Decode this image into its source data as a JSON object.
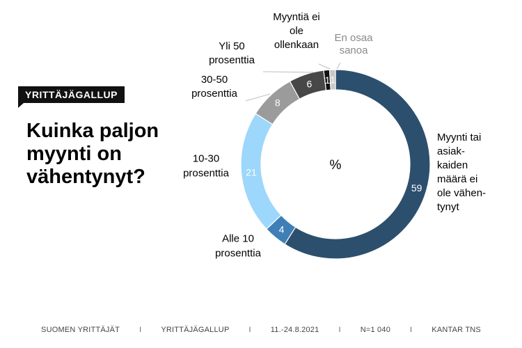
{
  "badge": "YRITTÄJÄGALLUP",
  "question_lines": [
    "Kuinka paljon",
    "myynti on",
    "vähentynyt?"
  ],
  "chart_data": {
    "type": "pie",
    "center_label": "%",
    "categories": [
      "Myynti tai asiakkaiden määrä ei ole vähentynyt",
      "Alle 10 prosenttia",
      "10-30 prosenttia",
      "30-50 prosenttia",
      "Yli 50 prosenttia",
      "Myyntiä ei ole ollenkaan",
      "En osaa sanoa"
    ],
    "category_label_lines": [
      [
        "Myynti tai",
        "asiak-",
        "kaiden",
        "määrä ei",
        "ole vähen-",
        "tynyt"
      ],
      [
        "Alle 10",
        "prosenttia"
      ],
      [
        "10-30",
        "prosenttia"
      ],
      [
        "30-50",
        "prosenttia"
      ],
      [
        "Yli 50",
        "prosenttia"
      ],
      [
        "Myyntiä ei",
        "ole",
        "ollenkaan"
      ],
      [
        "En osaa",
        "sanoa"
      ]
    ],
    "values": [
      59,
      4,
      21,
      8,
      6,
      1,
      1
    ],
    "value_labels": [
      "59",
      "4",
      "21",
      "8",
      "6",
      "1",
      "1"
    ],
    "colors": [
      "#2d4f6e",
      "#3f7fb6",
      "#9dd7fb",
      "#9b9b9b",
      "#474747",
      "#111111",
      "#c8c8c8"
    ]
  },
  "footer": [
    "SUOMEN YRITTÄJÄT",
    "YRITTÄJÄGALLUP",
    "11.-24.8.2021",
    "N=1 040",
    "KANTAR TNS"
  ],
  "footer_separator": "I"
}
